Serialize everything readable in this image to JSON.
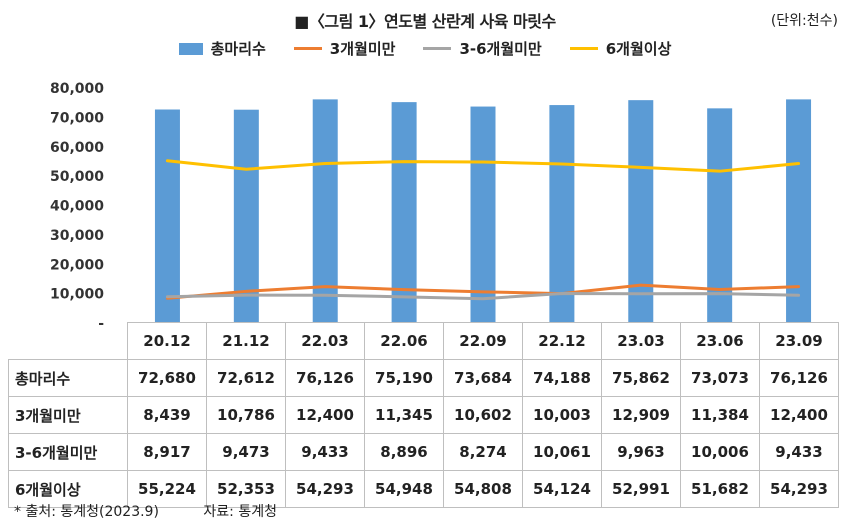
{
  "title": "■〈그림 1〉연도별 산란계 사육 마릿수",
  "unit": "(단위:천수)",
  "chart_data": {
    "type": "bar",
    "categories": [
      "20.12",
      "21.12",
      "22.03",
      "22.06",
      "22.09",
      "22.12",
      "23.03",
      "23.06",
      "23.09"
    ],
    "series": [
      {
        "name": "총마리수",
        "type": "bar",
        "color": "#5B9BD5",
        "values": [
          72680,
          72612,
          76126,
          75190,
          73684,
          74188,
          75862,
          73073,
          76126
        ],
        "labels": [
          "72,680",
          "72,612",
          "76,126",
          "75,190",
          "73,684",
          "74,188",
          "75,862",
          "73,073",
          "76,126"
        ]
      },
      {
        "name": "3개월미만",
        "type": "line",
        "color": "#ED7D31",
        "values": [
          8439,
          10786,
          12400,
          11345,
          10602,
          10003,
          12909,
          11384,
          12400
        ],
        "labels": [
          "8,439",
          "10,786",
          "12,400",
          "11,345",
          "10,602",
          "10,003",
          "12,909",
          "11,384",
          "12,400"
        ]
      },
      {
        "name": "3-6개월미만",
        "type": "line",
        "color": "#A5A5A5",
        "values": [
          8917,
          9473,
          9433,
          8896,
          8274,
          10061,
          9963,
          10006,
          9433
        ],
        "labels": [
          "8,917",
          "9,473",
          "9,433",
          "8,896",
          "8,274",
          "10,061",
          "9,963",
          "10,006",
          "9,433"
        ]
      },
      {
        "name": "6개월이상",
        "type": "line",
        "color": "#FFC000",
        "values": [
          55224,
          52353,
          54293,
          54948,
          54808,
          54124,
          52991,
          51682,
          54293
        ],
        "labels": [
          "55,224",
          "52,353",
          "54,293",
          "54,948",
          "54,808",
          "54,124",
          "52,991",
          "51,682",
          "54,293"
        ]
      }
    ],
    "ylim": [
      0,
      80000
    ],
    "yticks": [
      "-",
      "10,000",
      "20,000",
      "30,000",
      "40,000",
      "50,000",
      "60,000",
      "70,000",
      "80,000"
    ],
    "grid": false,
    "legend": "top"
  },
  "footnote": {
    "source": "* 출처: 통계청(2023.9)",
    "data_source": "자료: 통계청"
  }
}
